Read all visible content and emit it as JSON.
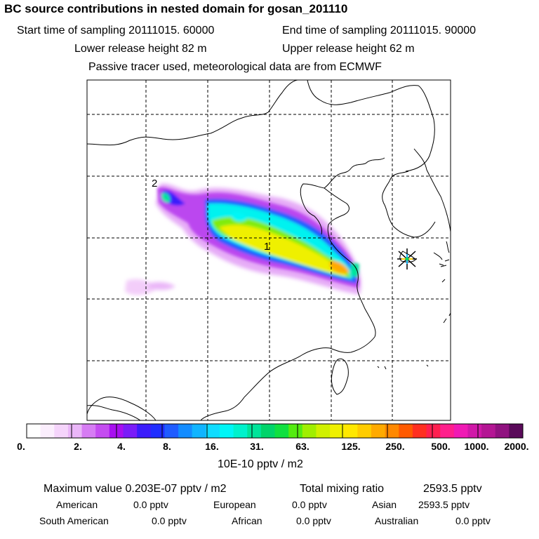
{
  "header": {
    "title": "BC  source contributions in nested domain for gosan_201110",
    "start_label": "Start time of sampling 20111015. 60000",
    "end_label": "End time of sampling 20111015. 90000",
    "lower_label": "Lower release height   82 m",
    "upper_label": "Upper release height   62 m",
    "info": "Passive tracer used, meteorological data are from ECMWF"
  },
  "map": {
    "marker_1": "1",
    "marker_2": "2",
    "station_symbol": "receptor-star"
  },
  "colorbar": {
    "labels": [
      "0.",
      "2.",
      "4.",
      "8.",
      "16.",
      "31.",
      "63.",
      "125.",
      "250.",
      "500.",
      "1000.",
      "2000."
    ],
    "units": "10E-10 pptv / m2",
    "colors": [
      "#ffffff",
      "#fbeefd",
      "#f5d4fb",
      "#eab6f8",
      "#d67cf3",
      "#c44cf0",
      "#a80ef0",
      "#7a1cf8",
      "#3b1cfb",
      "#1f2dff",
      "#1f5cff",
      "#138cff",
      "#10b4ff",
      "#0fdcff",
      "#00f6f6",
      "#00f2cc",
      "#00e49a",
      "#00d46a",
      "#10e040",
      "#54ec10",
      "#a0ee00",
      "#d0f000",
      "#eff000",
      "#ffe800",
      "#ffcc00",
      "#ffaa00",
      "#ff8800",
      "#ff5a00",
      "#ff2f20",
      "#ff1f4f",
      "#ff1f8c",
      "#f01ab4",
      "#d018a8",
      "#b41694",
      "#901280",
      "#5a0a5a"
    ]
  },
  "stats": {
    "max_label": "Maximum value  0.203E-07 pptv / m2",
    "total_label": "Total mixing ratio",
    "total_value": "2593.5 pptv",
    "american_label": "American",
    "american_value": "0.0 pptv",
    "european_label": "European",
    "european_value": "0.0 pptv",
    "asian_label": "Asian",
    "asian_value": "2593.5 pptv",
    "south_american_label": "South American",
    "south_american_value": "0.0 pptv",
    "african_label": "African",
    "african_value": "0.0 pptv",
    "australian_label": "Australian",
    "australian_value": "0.0 pptv"
  }
}
